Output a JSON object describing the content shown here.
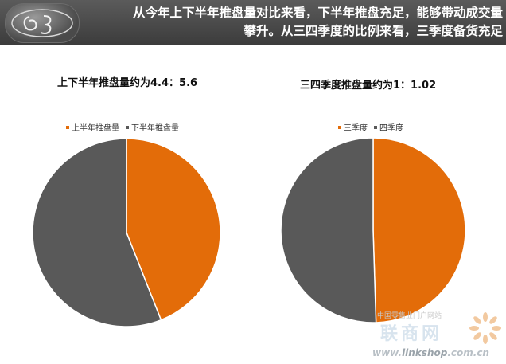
{
  "header": {
    "text": "从今年上下半年推盘量对比来看，下半年推盘充足，能够带动成交量\n攀升。从三四季度的比例来看，三季度备货充足",
    "logo_icon": "glossy-badge-logo"
  },
  "colors": {
    "orange": "#E36C09",
    "gray": "#595959"
  },
  "chart_data": [
    {
      "type": "pie",
      "title": "上下半年推盘量约为4.4：5.6",
      "labels": [
        "上半年推盘量",
        "下半年推盘量"
      ],
      "values": [
        4.4,
        5.6
      ],
      "colors": [
        "#E36C09",
        "#595959"
      ],
      "legend": "top"
    },
    {
      "type": "pie",
      "title": "三四季度推盘量约为1：1.02",
      "labels": [
        "三季度",
        "四季度"
      ],
      "values": [
        1,
        1.02
      ],
      "colors": [
        "#E36C09",
        "#595959"
      ],
      "legend": "top"
    }
  ],
  "watermark": {
    "tagline": "中国零售业门户网站",
    "name": "联商网",
    "url_prefix": "www.",
    "url_brand": "linkshop",
    "url_suffix": ".com.cn",
    "icon": "sunburst-logo-icon"
  }
}
